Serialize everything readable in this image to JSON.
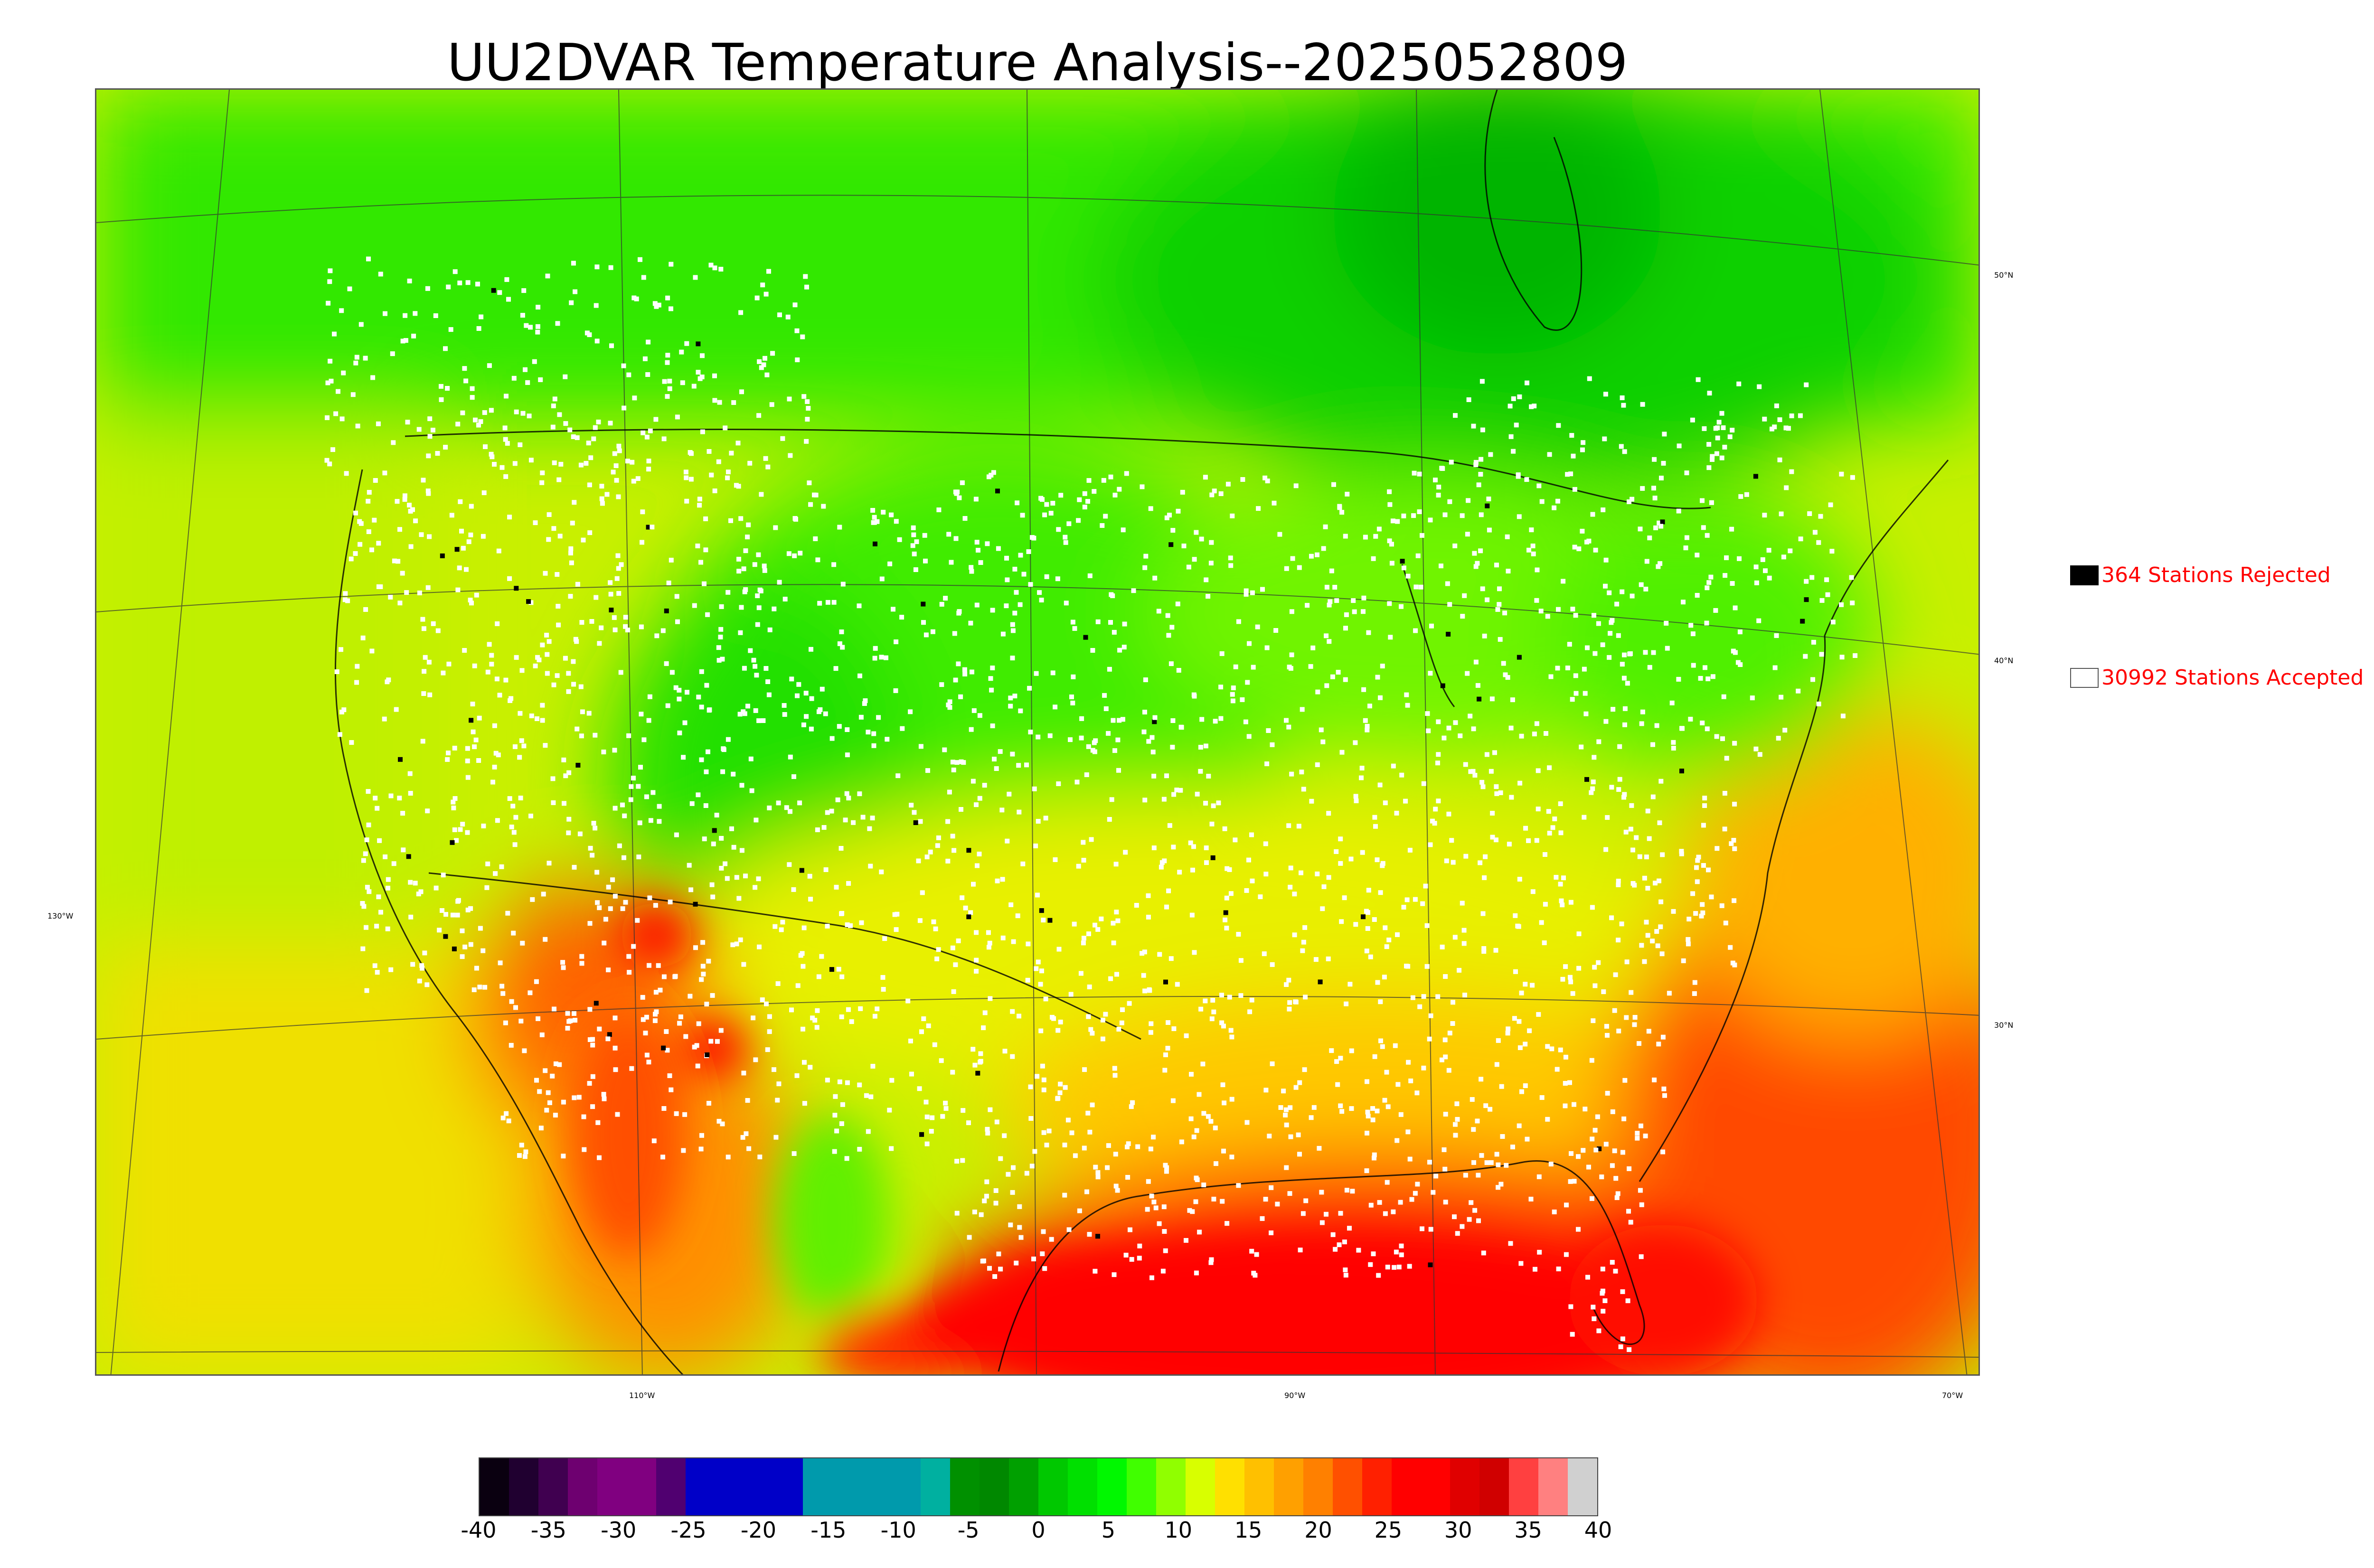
{
  "title": "UU2DVAR Temperature Analysis--2025052809",
  "legend": {
    "rejected": {
      "label": "364 Stations Rejected",
      "swatch_color": "#000000"
    },
    "accepted": {
      "label": "30992 Stations Accepted",
      "swatch_color": "#ffffff"
    }
  },
  "lon_labels": [
    "130°W",
    "110°W",
    "90°W",
    "70°W"
  ],
  "lat_labels": [
    "50°N",
    "40°N",
    "30°N"
  ],
  "colorbar": {
    "ticks": [
      "-40",
      "-35",
      "-30",
      "-25",
      "-20",
      "-15",
      "-10",
      "-5",
      "0",
      "5",
      "10",
      "15",
      "20",
      "25",
      "30",
      "35",
      "40"
    ],
    "range": [
      -40,
      40
    ],
    "colors": [
      "#0a0010",
      "#200030",
      "#400050",
      "#6e0070",
      "#800080",
      "#800080",
      "#500070",
      "#0000c8",
      "#0000c8",
      "#0000c8",
      "#0000c8",
      "#009aac",
      "#009aac",
      "#009aac",
      "#009aac",
      "#00b0a0",
      "#009000",
      "#008800",
      "#00a000",
      "#00c800",
      "#00e000",
      "#00f800",
      "#40ff00",
      "#90ff00",
      "#d8ff00",
      "#ffe000",
      "#ffc000",
      "#ffa000",
      "#ff8000",
      "#ff5000",
      "#ff2000",
      "#ff0000",
      "#ff0000",
      "#e00000",
      "#d00000",
      "#ff4040",
      "#ff8080",
      "#d0d0d0"
    ]
  },
  "temperature_regions": {
    "ocean_west": "#d4f000",
    "ocean_southwest": "#ffd000",
    "gulf": "#ff1000",
    "atlantic_south": "#ff6000",
    "atlantic_mid": "#ffb000",
    "canada_north": "#20e000",
    "hudson_bay": "#00c000",
    "plains": "#40f000",
    "rockies": "#00d800",
    "southwest_hot": "#ff4000",
    "southeast": "#ffc800",
    "midwest": "#b0ff00",
    "mexico": "#ff9000"
  }
}
